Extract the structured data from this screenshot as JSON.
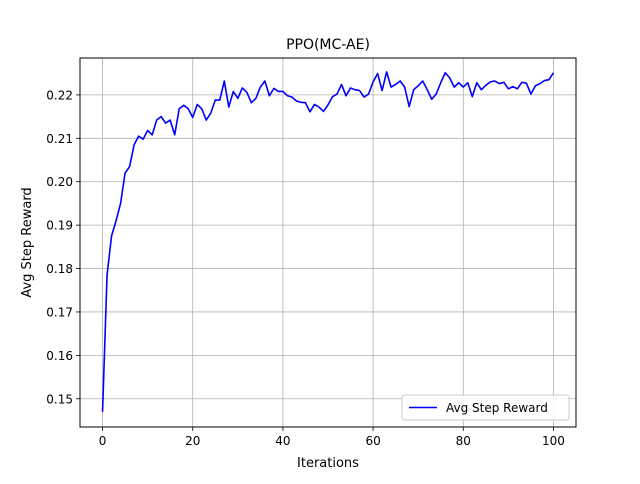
{
  "chart_data": {
    "type": "line",
    "title": "PPO(MC-AE)",
    "xlabel": "Iterations",
    "ylabel": "Avg Step Reward",
    "xlim": [
      -5,
      105
    ],
    "ylim": [
      0.1435,
      0.2285
    ],
    "xticks": [
      0,
      20,
      40,
      60,
      80,
      100
    ],
    "yticks": [
      0.15,
      0.16,
      0.17,
      0.18,
      0.19,
      0.2,
      0.21,
      0.22
    ],
    "ytick_labels": [
      "0.15",
      "0.16",
      "0.17",
      "0.18",
      "0.19",
      "0.20",
      "0.21",
      "0.22"
    ],
    "grid": true,
    "legend_position": "lower right",
    "series": [
      {
        "name": "Avg Step Reward",
        "color": "#0000ff",
        "x": [
          0,
          1,
          2,
          3,
          4,
          5,
          6,
          7,
          8,
          9,
          10,
          11,
          12,
          13,
          14,
          15,
          16,
          17,
          18,
          19,
          20,
          21,
          22,
          23,
          24,
          25,
          26,
          27,
          28,
          29,
          30,
          31,
          32,
          33,
          34,
          35,
          36,
          37,
          38,
          39,
          40,
          41,
          42,
          43,
          44,
          45,
          46,
          47,
          48,
          49,
          50,
          51,
          52,
          53,
          54,
          55,
          56,
          57,
          58,
          59,
          60,
          61,
          62,
          63,
          64,
          65,
          66,
          67,
          68,
          69,
          70,
          71,
          72,
          73,
          74,
          75,
          76,
          77,
          78,
          79,
          80,
          81,
          82,
          83,
          84,
          85,
          86,
          87,
          88,
          89,
          90,
          91,
          92,
          93,
          94,
          95,
          96,
          97,
          98,
          99,
          100
        ],
        "values": [
          0.147,
          0.1785,
          0.1875,
          0.191,
          0.195,
          0.202,
          0.2035,
          0.2085,
          0.2105,
          0.2098,
          0.2118,
          0.2108,
          0.2142,
          0.215,
          0.2135,
          0.2142,
          0.2108,
          0.2168,
          0.2176,
          0.2168,
          0.2148,
          0.2178,
          0.2168,
          0.2142,
          0.2158,
          0.2188,
          0.2188,
          0.2232,
          0.2172,
          0.2208,
          0.2192,
          0.2216,
          0.2206,
          0.2182,
          0.2192,
          0.2218,
          0.2232,
          0.2198,
          0.2215,
          0.2208,
          0.2208,
          0.2198,
          0.2195,
          0.2186,
          0.2183,
          0.2182,
          0.2161,
          0.2178,
          0.2172,
          0.2162,
          0.2177,
          0.2196,
          0.2202,
          0.2224,
          0.2198,
          0.2216,
          0.2212,
          0.221,
          0.2195,
          0.2202,
          0.223,
          0.2249,
          0.221,
          0.2253,
          0.2218,
          0.2224,
          0.2232,
          0.2218,
          0.2173,
          0.2212,
          0.2221,
          0.2232,
          0.2212,
          0.219,
          0.2202,
          0.2228,
          0.2251,
          0.2239,
          0.2218,
          0.2228,
          0.2218,
          0.2228,
          0.2196,
          0.2228,
          0.2212,
          0.2222,
          0.223,
          0.2232,
          0.2226,
          0.2229,
          0.2214,
          0.2219,
          0.2214,
          0.2229,
          0.2227,
          0.2202,
          0.2221,
          0.2226,
          0.2233,
          0.2235,
          0.2251
        ]
      }
    ]
  }
}
